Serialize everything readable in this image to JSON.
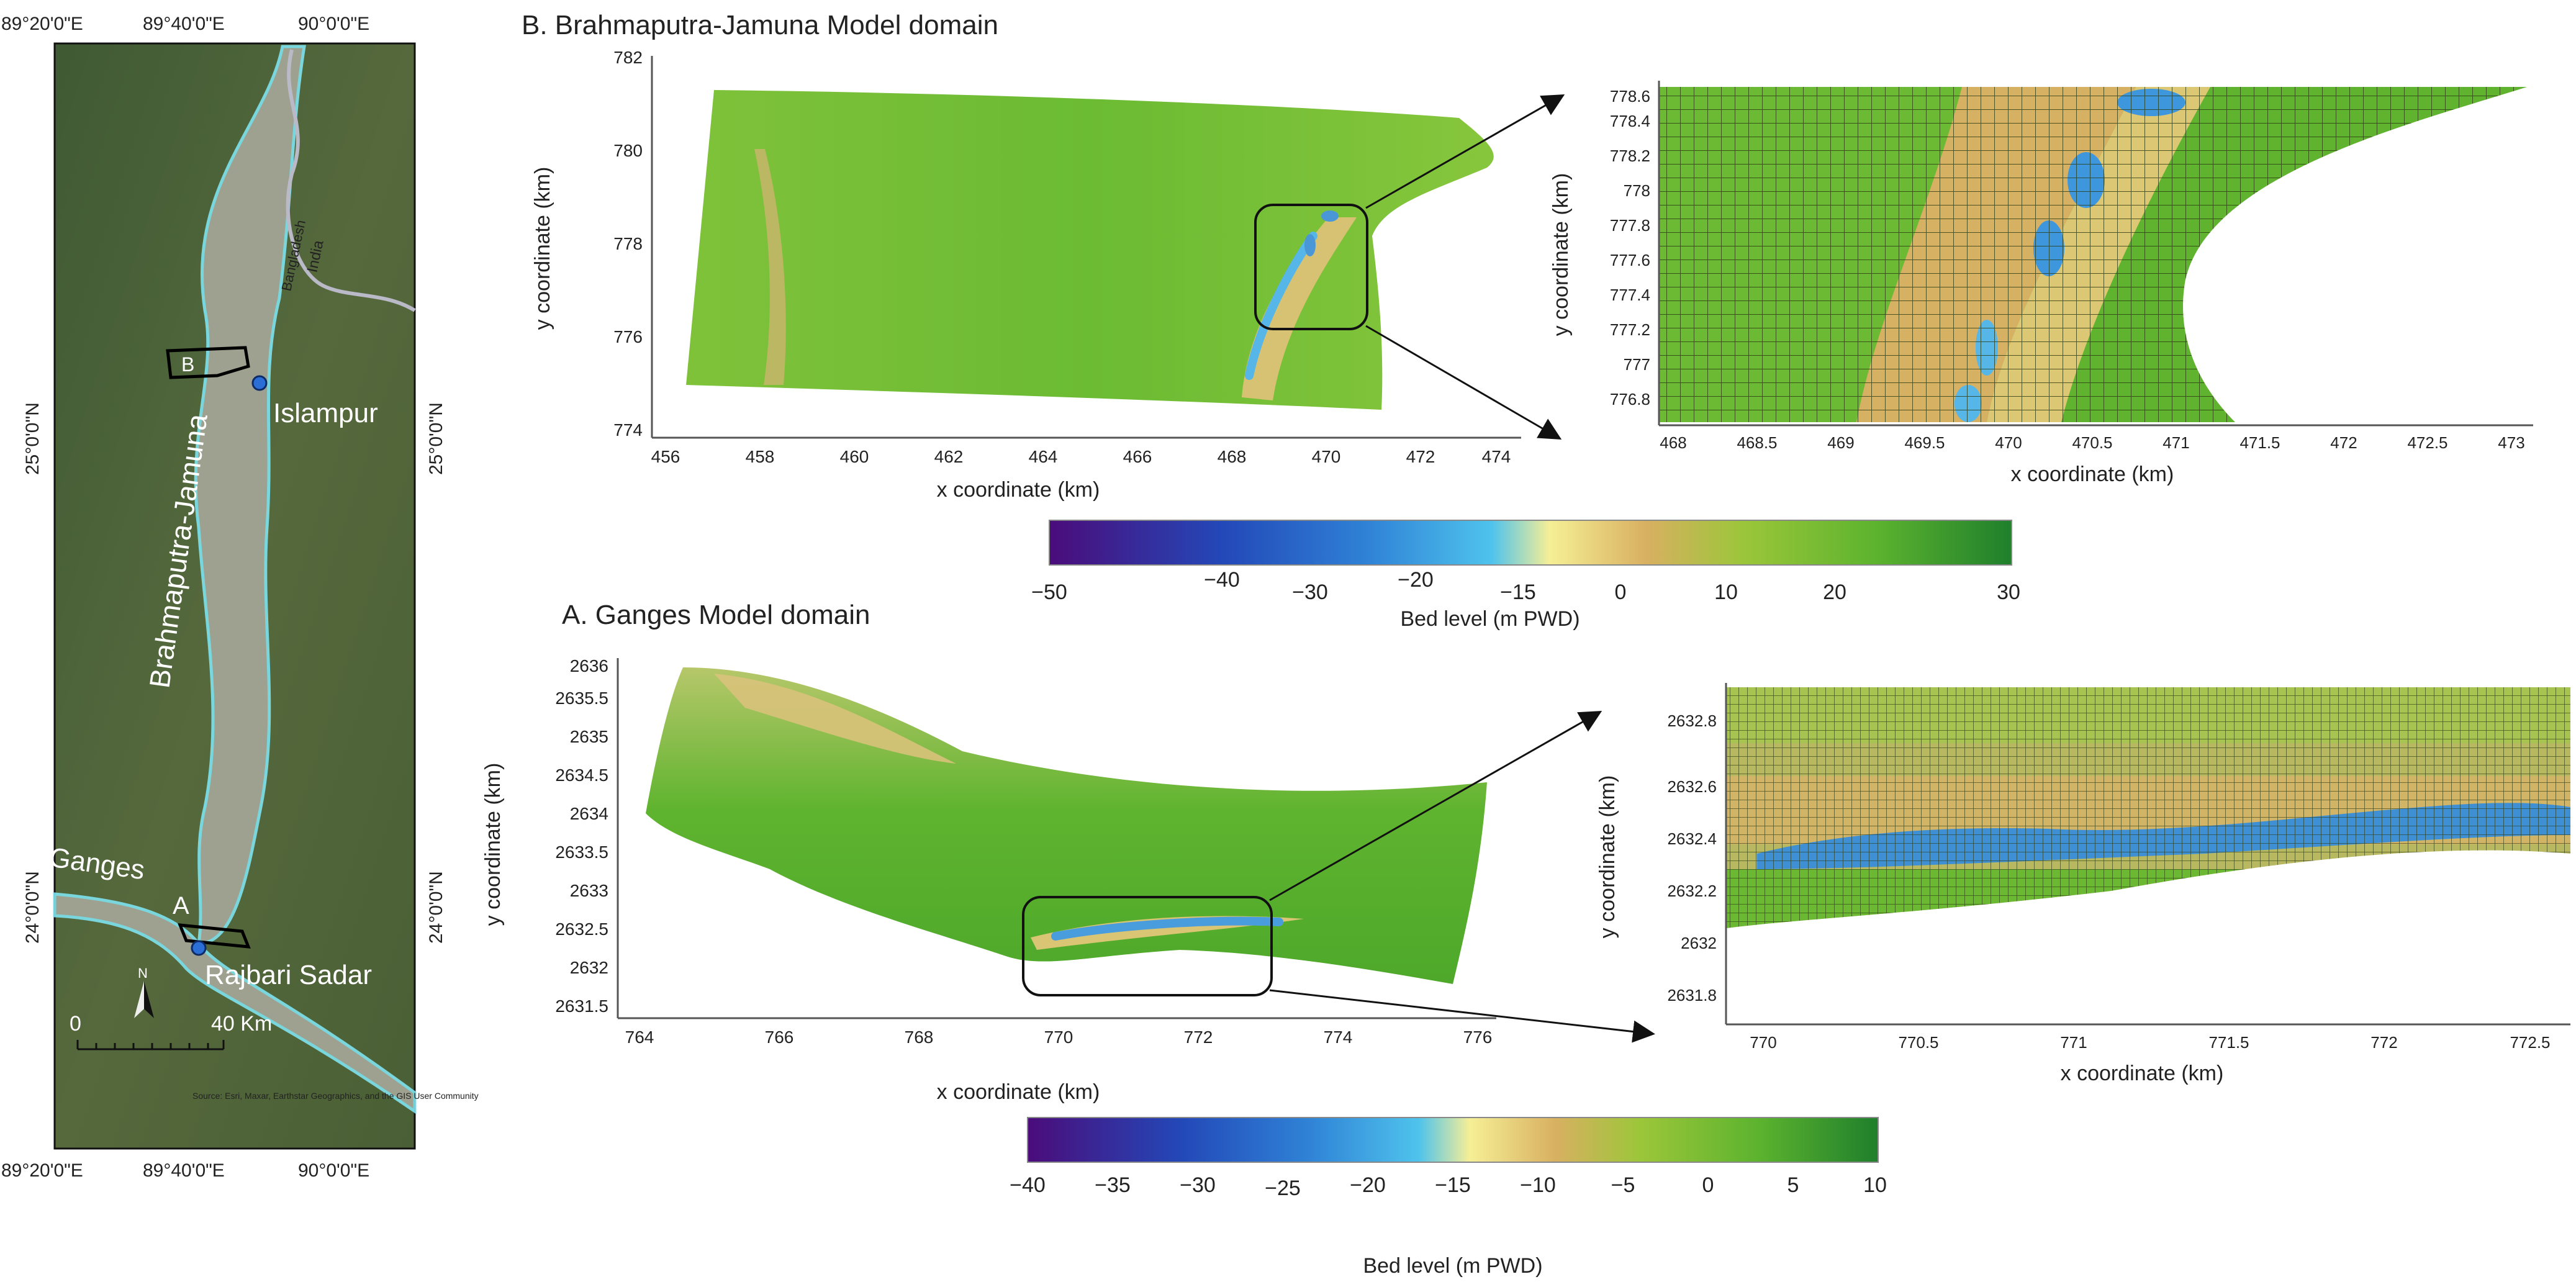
{
  "overview_map": {
    "top_lon_labels": [
      "89°20'0\"E",
      "89°40'0\"E",
      "90°0'0\"E"
    ],
    "bottom_lon_labels": [
      "89°20'0\"E",
      "89°40'0\"E",
      "90°0'0\"E"
    ],
    "left_lat_labels": [
      "25°0'0\"N",
      "24°0'0\"N"
    ],
    "right_lat_labels": [
      "25°0'0\"N",
      "24°0'0\"N"
    ],
    "river_brahmaputra": "Brahmaputra-Jamuna",
    "river_ganges": "Ganges",
    "place_islampur": "Islampur",
    "place_rajbari": "Rajbari Sadar",
    "country_india": "India",
    "country_bangladesh": "Bangladesh",
    "marker_a": "A",
    "marker_b": "B",
    "north_arrow": "N",
    "scale_zero": "0",
    "scale_end": "40 Km",
    "credit": "Source: Esri, Maxar, Earthstar Geographics, and the GIS User Community",
    "colors": {
      "river_outline": "#7fe3ef",
      "town_marker": "#2b6fd6",
      "land": "#4e6436"
    }
  },
  "panel_b": {
    "title": "B. Brahmaputra-Jamuna Model domain",
    "xlabel": "x coordinate (km)",
    "ylabel": "y coordinate (km)",
    "xticks": [
      "456",
      "458",
      "460",
      "462",
      "464",
      "466",
      "468",
      "470",
      "472",
      "474"
    ],
    "yticks": [
      "774",
      "776",
      "778",
      "780",
      "782"
    ],
    "zoom_xlabel": "x coordinate (km)",
    "zoom_ylabel": "y coordinate (km)",
    "zoom_xticks": [
      "468",
      "468.5",
      "469",
      "469.5",
      "470",
      "470.5",
      "471",
      "471.5",
      "472",
      "472.5",
      "473"
    ],
    "zoom_yticks": [
      "776.8",
      "777",
      "777.2",
      "777.4",
      "777.6",
      "777.8",
      "778",
      "778.2",
      "778.4",
      "778.6"
    ],
    "colorbar_ticks": [
      "−50",
      "−40",
      "−30",
      "−20",
      "−15",
      "0",
      "10",
      "20",
      "30"
    ],
    "colorbar_label": "Bed level  (m PWD)"
  },
  "panel_a": {
    "title": "A. Ganges Model domain",
    "xlabel": "x coordinate (km)",
    "ylabel": "y coordinate (km)",
    "xticks": [
      "764",
      "766",
      "768",
      "770",
      "772",
      "774",
      "776"
    ],
    "yticks": [
      "2631.5",
      "2632",
      "2632.5",
      "2633",
      "2633.5",
      "2634",
      "2634.5",
      "2635",
      "2635.5",
      "2636"
    ],
    "zoom_xlabel": "x coordinate (km)",
    "zoom_ylabel": "y coordinate (km)",
    "zoom_xticks": [
      "770",
      "770.5",
      "771",
      "771.5",
      "772",
      "772.5"
    ],
    "zoom_yticks": [
      "2631.8",
      "2632",
      "2632.2",
      "2632.4",
      "2632.6",
      "2632.8"
    ],
    "colorbar_ticks": [
      "−40",
      "−35",
      "−30",
      "−25",
      "−20",
      "−15",
      "−10",
      "−5",
      "0",
      "5",
      "10"
    ],
    "colorbar_label": "Bed level  (m PWD)"
  },
  "colormap": [
    "#4b0c7a",
    "#2348b8",
    "#2f82d6",
    "#4fc3ec",
    "#f6ef96",
    "#d8b061",
    "#9cc63a",
    "#5cb32e",
    "#1f7f2c"
  ]
}
